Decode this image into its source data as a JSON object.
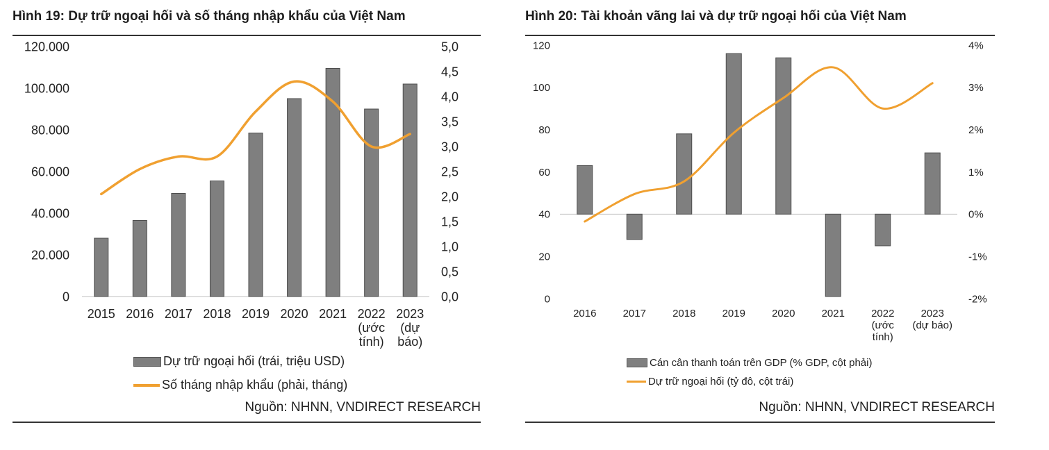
{
  "colors": {
    "bar": "#7f7f7f",
    "bar_stroke": "#4d4d4d",
    "line": "#f0a030",
    "axis": "#bfbfbf",
    "rule": "#333333"
  },
  "panel1": {
    "title": "Hình 19: Dự trữ ngoại hối và số tháng nhập khẩu của Việt Nam",
    "source": "Nguồn: NHNN, VNDIRECT RESEARCH",
    "legend_bar": "Dự trữ ngoại hối (trái, triệu USD)",
    "legend_line": "Số tháng nhập khẩu (phải, tháng)"
  },
  "panel2": {
    "title": "Hình 20: Tài khoản vãng lai và dự trữ ngoại hối của Việt Nam",
    "source": "Nguồn: NHNN, VNDIRECT RESEARCH",
    "legend_bar": "Cán cân thanh toán trên GDP (% GDP, cột phải)",
    "legend_line": "Dự trữ ngoại hối (tỷ đô, cột trái)"
  },
  "chart_data": [
    {
      "type": "bar",
      "categories": [
        "2015",
        "2016",
        "2017",
        "2018",
        "2019",
        "2020",
        "2021",
        "2022\n(ước\ntính)",
        "2023\n(dự\nbáo)"
      ],
      "ylim": [
        0,
        120000
      ],
      "y2lim": [
        0,
        5
      ],
      "y_ticks": [
        "0",
        "20.000",
        "40.000",
        "60.000",
        "80.000",
        "100.000",
        "120.000"
      ],
      "y2_ticks": [
        "0,0",
        "0,5",
        "1,0",
        "1,5",
        "2,0",
        "2,5",
        "3,0",
        "3,5",
        "4,0",
        "4,5",
        "5,0"
      ],
      "series": [
        {
          "name": "Dự trữ ngoại hối (trái, triệu USD)",
          "type": "bar",
          "axis": "left",
          "values": [
            28000,
            36500,
            49500,
            55500,
            78500,
            95000,
            109500,
            90000,
            102000
          ]
        },
        {
          "name": "Số tháng nhập khẩu (phải, tháng)",
          "type": "line",
          "axis": "right",
          "values": [
            2.05,
            2.55,
            2.8,
            2.8,
            3.7,
            4.3,
            3.9,
            3.0,
            3.25
          ]
        }
      ]
    },
    {
      "type": "bar",
      "categories": [
        "2016",
        "2017",
        "2018",
        "2019",
        "2020",
        "2021",
        "2022\n(ước\ntính)",
        "2023\n(dự báo)"
      ],
      "ylim": [
        0,
        120
      ],
      "y2lim": [
        -2,
        4
      ],
      "y_ticks": [
        "0",
        "20",
        "40",
        "60",
        "80",
        "100",
        "120"
      ],
      "y2_ticks": [
        "-2%",
        "-1%",
        "0%",
        "1%",
        "2%",
        "3%",
        "4%"
      ],
      "series": [
        {
          "name": "Cán cân thanh toán trên GDP (% GDP, cột phải)",
          "type": "bar",
          "axis": "right",
          "values": [
            1.15,
            -0.6,
            1.9,
            3.8,
            3.7,
            -1.95,
            -0.75,
            1.45
          ]
        },
        {
          "name": "Dự trữ ngoại hối (tỷ đô, cột trái)",
          "type": "line",
          "axis": "left",
          "values": [
            36.5,
            49.5,
            55.5,
            78.5,
            95,
            109.5,
            90,
            102
          ]
        }
      ]
    }
  ]
}
